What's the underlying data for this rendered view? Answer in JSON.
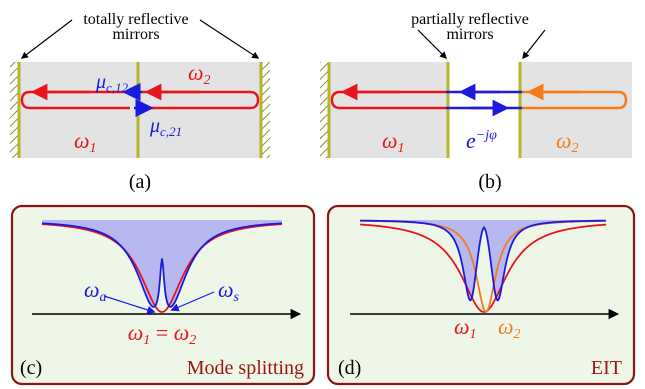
{
  "panel_a": {
    "top_label_line1": "totally reflective",
    "top_label_line2": "mirrors",
    "mu12": "μ",
    "mu12_sub": "c,12",
    "mu21": "μ",
    "mu21_sub": "c,21",
    "omega1": "ω",
    "omega1_sub": "1",
    "omega2": "ω",
    "omega2_sub": "2",
    "caption": "(a)"
  },
  "panel_b": {
    "top_label_line1": "partially reflective",
    "top_label_line2": "mirrors",
    "omega1": "ω",
    "omega1_sub": "1",
    "omega2": "ω",
    "omega2_sub": "2",
    "phase_base": "e",
    "phase_exp": "−jφ",
    "caption": "(b)"
  },
  "panel_c": {
    "tag": "(c)",
    "title": "Mode splitting",
    "omega_a": "ω",
    "omega_a_sub": "a",
    "omega_s": "ω",
    "omega_s_sub": "s",
    "eq_omega1": "ω",
    "eq_omega1_sub": "1",
    "eq_sign": " = ",
    "eq_omega2": "ω",
    "eq_omega2_sub": "2"
  },
  "panel_d": {
    "tag": "(d)",
    "title": "EIT",
    "omega1": "ω",
    "omega1_sub": "1",
    "omega2": "ω",
    "omega2_sub": "2"
  },
  "colors": {
    "red": "#e8141c",
    "blue": "#1a1ae0",
    "orange": "#f57a1a",
    "olive": "#b5b52a",
    "box_border": "#8b1414",
    "box_fill": "#eef6e8",
    "cavity_fill": "#e3e3e3",
    "shade": "#b8b8f0"
  }
}
